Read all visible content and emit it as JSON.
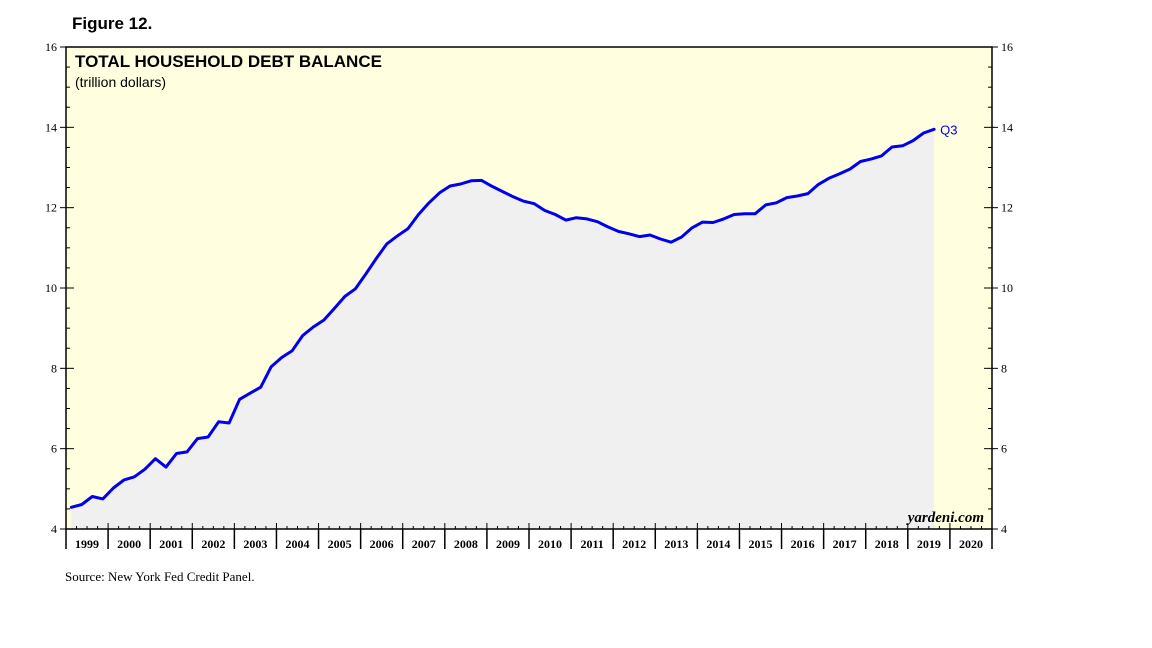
{
  "figure_label": "Figure 12.",
  "source": "Source: New York Fed Credit Panel.",
  "chart_data": {
    "type": "area",
    "title": "TOTAL HOUSEHOLD DEBT BALANCE",
    "subtitle": "(trillion dollars)",
    "watermark": "yardeni.com",
    "end_label": "Q3",
    "xlabel": "",
    "ylabel": "",
    "ylim": [
      4,
      16
    ],
    "y_ticks": [
      "4",
      "6",
      "8",
      "10",
      "12",
      "14",
      "16"
    ],
    "x_tick_labels": [
      "1999",
      "2000",
      "2001",
      "2002",
      "2003",
      "2004",
      "2005",
      "2006",
      "2007",
      "2008",
      "2009",
      "2010",
      "2011",
      "2012",
      "2013",
      "2014",
      "2015",
      "2016",
      "2017",
      "2018",
      "2019",
      "2020"
    ],
    "grid": false,
    "colors": {
      "line": "#0000ee",
      "fill": "#f0f0f0",
      "background": "#ffffe0"
    },
    "series": [
      {
        "x": [
          "1999 Q1",
          "1999 Q2",
          "1999 Q3",
          "1999 Q4",
          "2000 Q1",
          "2000 Q2",
          "2000 Q3",
          "2000 Q4",
          "2001 Q1",
          "2001 Q2",
          "2001 Q3",
          "2001 Q4",
          "2002 Q1",
          "2002 Q2",
          "2002 Q3",
          "2002 Q4",
          "2003 Q1",
          "2003 Q2",
          "2003 Q3",
          "2003 Q4",
          "2004 Q1",
          "2004 Q2",
          "2004 Q3",
          "2004 Q4",
          "2005 Q1",
          "2005 Q2",
          "2005 Q3",
          "2005 Q4",
          "2006 Q1",
          "2006 Q2",
          "2006 Q3",
          "2006 Q4",
          "2007 Q1",
          "2007 Q2",
          "2007 Q3",
          "2007 Q4",
          "2008 Q1",
          "2008 Q2",
          "2008 Q3",
          "2008 Q4",
          "2009 Q1",
          "2009 Q2",
          "2009 Q3",
          "2009 Q4",
          "2010 Q1",
          "2010 Q2",
          "2010 Q3",
          "2010 Q4",
          "2011 Q1",
          "2011 Q2",
          "2011 Q3",
          "2011 Q4",
          "2012 Q1",
          "2012 Q2",
          "2012 Q3",
          "2012 Q4",
          "2013 Q1",
          "2013 Q2",
          "2013 Q3",
          "2013 Q4",
          "2014 Q1",
          "2014 Q2",
          "2014 Q3",
          "2014 Q4",
          "2015 Q1",
          "2015 Q2",
          "2015 Q3",
          "2015 Q4",
          "2016 Q1",
          "2016 Q2",
          "2016 Q3",
          "2016 Q4",
          "2017 Q1",
          "2017 Q2",
          "2017 Q3",
          "2017 Q4",
          "2018 Q1",
          "2018 Q2",
          "2018 Q3",
          "2018 Q4",
          "2019 Q1",
          "2019 Q2",
          "2019 Q3"
        ],
        "values": [
          4.54,
          4.61,
          4.81,
          4.75,
          5.02,
          5.22,
          5.3,
          5.49,
          5.75,
          5.54,
          5.88,
          5.92,
          6.25,
          6.29,
          6.67,
          6.64,
          7.23,
          7.38,
          7.53,
          8.04,
          8.27,
          8.44,
          8.82,
          9.03,
          9.2,
          9.49,
          9.79,
          9.98,
          10.35,
          10.74,
          11.1,
          11.3,
          11.48,
          11.83,
          12.12,
          12.37,
          12.54,
          12.59,
          12.67,
          12.68,
          12.53,
          12.4,
          12.27,
          12.16,
          12.1,
          11.93,
          11.83,
          11.69,
          11.75,
          11.72,
          11.65,
          11.52,
          11.41,
          11.35,
          11.28,
          11.32,
          11.22,
          11.14,
          11.27,
          11.5,
          11.64,
          11.63,
          11.72,
          11.83,
          11.85,
          11.85,
          12.07,
          12.12,
          12.25,
          12.29,
          12.35,
          12.58,
          12.73,
          12.84,
          12.96,
          13.15,
          13.21,
          13.29,
          13.51,
          13.54,
          13.67,
          13.86,
          13.95
        ]
      }
    ]
  }
}
